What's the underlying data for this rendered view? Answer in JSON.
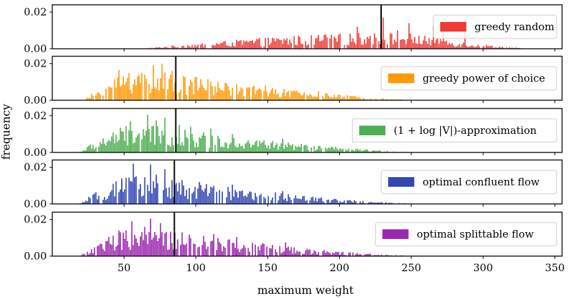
{
  "chart_data": {
    "type": "histogram",
    "xlabel": "maximum weight",
    "ylabel": "frequency",
    "xlim": [
      0,
      355
    ],
    "ylim": [
      0,
      0.024
    ],
    "x_ticks": [
      {
        "value": 50,
        "label": "50"
      },
      {
        "value": 100,
        "label": "100"
      },
      {
        "value": 150,
        "label": "150"
      },
      {
        "value": 200,
        "label": "200"
      },
      {
        "value": 250,
        "label": "250"
      },
      {
        "value": 300,
        "label": "300"
      },
      {
        "value": 350,
        "label": "350"
      }
    ],
    "y_ticks": [
      {
        "value": 0.0,
        "label": "0.00"
      },
      {
        "value": 0.02,
        "label": "0.02"
      }
    ],
    "bin_width": 1,
    "legend_position": "right",
    "panels": [
      {
        "series": "greedy random",
        "color": "#f03a34",
        "mean_line": 229,
        "support": [
          60,
          336
        ],
        "peak_center": 245,
        "peak_height": 0.0055,
        "spikes": [
          [
            230,
            0.017
          ],
          [
            248,
            0.014
          ],
          [
            272,
            0.011
          ],
          [
            212,
            0.012
          ],
          [
            287,
            0.009
          ],
          [
            265,
            0.0125
          ],
          [
            240,
            0.01
          ]
        ]
      },
      {
        "series": "greedy power of choice",
        "color": "#ff9b0a",
        "mean_line": 86,
        "support": [
          22,
          258
        ],
        "peak_center": 60,
        "peak_height": 0.0105,
        "spikes": [
          [
            46,
            0.0165
          ],
          [
            53,
            0.015
          ],
          [
            60,
            0.014
          ],
          [
            70,
            0.019
          ],
          [
            76,
            0.02
          ],
          [
            83,
            0.016
          ],
          [
            92,
            0.0125
          ],
          [
            103,
            0.0115
          ],
          [
            120,
            0.0095
          ],
          [
            148,
            0.008
          ],
          [
            185,
            0.005
          ]
        ]
      },
      {
        "series": "(1 + log |V|)-approximation",
        "color": "#4caf50",
        "mean_line": 86,
        "support": [
          18,
          258
        ],
        "peak_center": 62,
        "peak_height": 0.0095,
        "spikes": [
          [
            54,
            0.017
          ],
          [
            66,
            0.0205
          ],
          [
            72,
            0.0175
          ],
          [
            78,
            0.019
          ],
          [
            88,
            0.015
          ],
          [
            96,
            0.014
          ],
          [
            110,
            0.013
          ],
          [
            125,
            0.01
          ],
          [
            160,
            0.0075
          ]
        ]
      },
      {
        "series": "optimal confluent flow",
        "color": "#3346b4",
        "mean_line": 85,
        "support": [
          18,
          258
        ],
        "peak_center": 62,
        "peak_height": 0.0095,
        "spikes": [
          [
            56,
            0.022
          ],
          [
            68,
            0.0215
          ],
          [
            78,
            0.019
          ],
          [
            72,
            0.016
          ],
          [
            48,
            0.014
          ],
          [
            90,
            0.013
          ],
          [
            102,
            0.012
          ],
          [
            125,
            0.0105
          ],
          [
            160,
            0.007
          ]
        ]
      },
      {
        "series": "optimal splittable flow",
        "color": "#9c27b0",
        "mean_line": 85,
        "support": [
          18,
          258
        ],
        "peak_center": 62,
        "peak_height": 0.0095,
        "spikes": [
          [
            55,
            0.019
          ],
          [
            68,
            0.0205
          ],
          [
            75,
            0.018
          ],
          [
            64,
            0.016
          ],
          [
            46,
            0.014
          ],
          [
            90,
            0.013
          ],
          [
            112,
            0.012
          ],
          [
            128,
            0.0105
          ],
          [
            162,
            0.0075
          ]
        ]
      }
    ]
  }
}
